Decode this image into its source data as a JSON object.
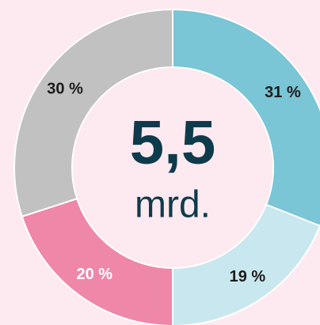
{
  "chart_data": {
    "type": "donut",
    "center_value": "5,5",
    "center_unit": "mrd.",
    "values": [
      31,
      19,
      20,
      30
    ],
    "value_labels": [
      "31 %",
      "19 %",
      "20 %",
      "30 %"
    ],
    "colors": [
      "#7ac5d6",
      "#c9e7ee",
      "#ef87a9",
      "#c1c1c1"
    ],
    "label_colors": [
      "#1c1c1c",
      "#1c1c1c",
      "#ffffff",
      "#1c1c1c"
    ]
  }
}
